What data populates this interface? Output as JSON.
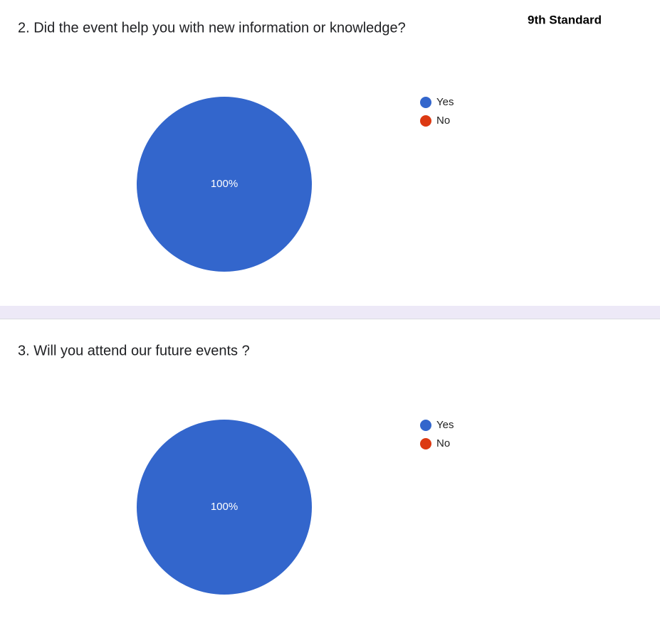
{
  "label": "9th Standard",
  "chart_data": [
    {
      "type": "pie",
      "title": "2. Did the event help you with new information or knowledge?",
      "categories": [
        "Yes",
        "No"
      ],
      "values": [
        100,
        0
      ],
      "value_labels": [
        "100%",
        null
      ],
      "colors": [
        "#3366cc",
        "#dc3912"
      ],
      "legend": "right"
    },
    {
      "type": "pie",
      "title": "3. Will you attend our future events ?",
      "categories": [
        "Yes",
        "No"
      ],
      "values": [
        100,
        0
      ],
      "value_labels": [
        "100%",
        null
      ],
      "colors": [
        "#3366cc",
        "#dc3912"
      ],
      "legend": "right"
    }
  ]
}
